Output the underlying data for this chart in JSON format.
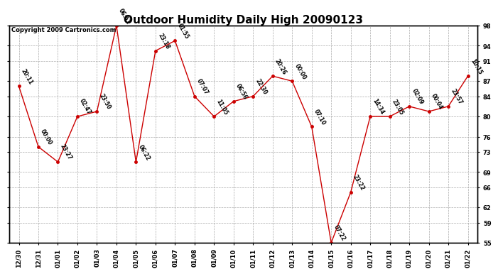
{
  "title": "Outdoor Humidity Daily High 20090123",
  "copyright": "Copyright 2009 Cartronics.com",
  "x_labels": [
    "12/30",
    "12/31",
    "01/01",
    "01/02",
    "01/03",
    "01/04",
    "01/05",
    "01/06",
    "01/07",
    "01/08",
    "01/09",
    "01/10",
    "01/11",
    "01/12",
    "01/13",
    "01/14",
    "01/15",
    "01/16",
    "01/17",
    "01/18",
    "01/19",
    "01/20",
    "01/21",
    "01/22"
  ],
  "y_values": [
    86,
    74,
    71,
    80,
    81,
    98,
    71,
    93,
    95,
    84,
    80,
    83,
    84,
    88,
    87,
    78,
    55,
    65,
    80,
    80,
    82,
    81,
    82,
    88
  ],
  "point_labels": [
    "20:11",
    "00:00",
    "23:27",
    "02:47",
    "23:50",
    "06:51",
    "06:22",
    "23:18",
    "01:55",
    "07:07",
    "11:05",
    "06:56",
    "22:30",
    "20:26",
    "00:00",
    "07:10",
    "07:22",
    "23:22",
    "14:34",
    "23:05",
    "02:09",
    "00:04",
    "23:57",
    "10:15"
  ],
  "y_ticks": [
    55,
    59,
    62,
    66,
    69,
    73,
    76,
    80,
    84,
    87,
    91,
    94,
    98
  ],
  "y_min": 55,
  "y_max": 98,
  "line_color": "#cc0000",
  "marker_color": "#cc0000",
  "background_color": "#ffffff",
  "grid_color": "#aaaaaa",
  "title_fontsize": 11,
  "label_fontsize": 6,
  "point_label_fontsize": 5.5,
  "copyright_fontsize": 6
}
